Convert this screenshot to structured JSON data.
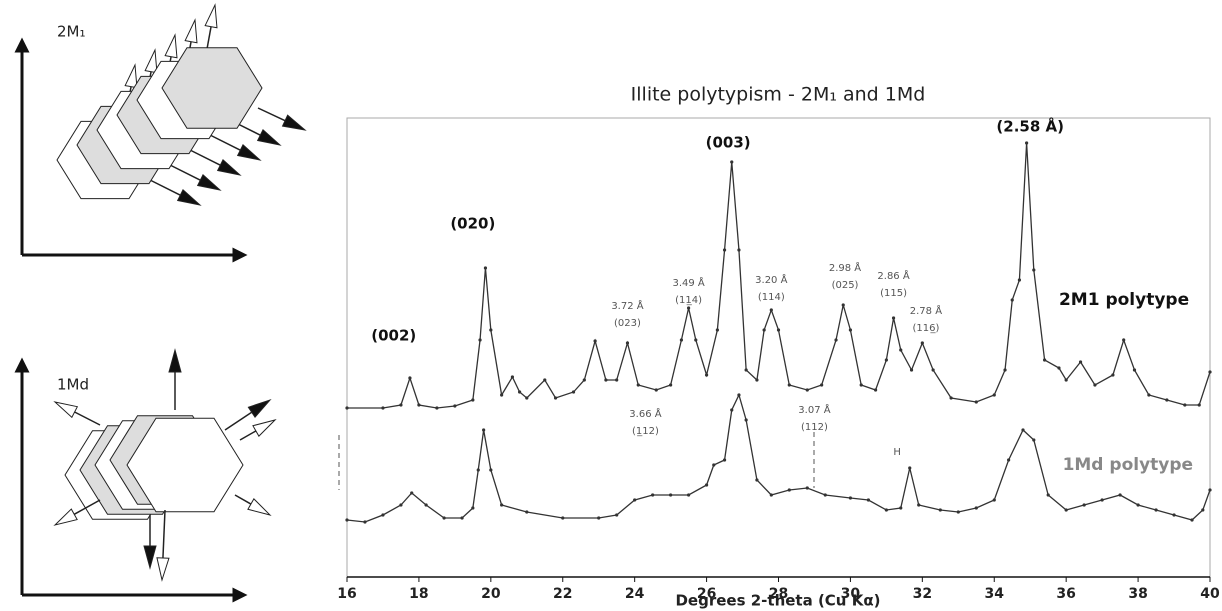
{
  "diagrams": {
    "labels": [
      "2M₁",
      "1Md"
    ]
  },
  "chart_data": {
    "type": "line",
    "title": "Illite polytypism - 2M₁ and 1Md",
    "x_label": "Degrees 2-theta (Cu Kα)",
    "xlim": [
      16,
      40
    ],
    "xticks": [
      16,
      18,
      20,
      22,
      24,
      26,
      28,
      30,
      32,
      34,
      36,
      38,
      40
    ],
    "ylim": [
      0,
      459
    ],
    "series": [
      {
        "name": "2M1 polytype",
        "color": "#333333",
        "label_color": "#111111",
        "label_at": [
          35.8,
          277
        ],
        "x": [
          16,
          17,
          17.5,
          17.75,
          18,
          18.5,
          19,
          19.5,
          19.7,
          19.85,
          20,
          20.3,
          20.6,
          20.8,
          21,
          21.5,
          21.8,
          22.3,
          22.6,
          22.9,
          23.2,
          23.5,
          23.8,
          24.1,
          24.6,
          25,
          25.3,
          25.5,
          25.7,
          26,
          26.3,
          26.5,
          26.7,
          26.9,
          27.1,
          27.4,
          27.6,
          27.8,
          28,
          28.3,
          28.8,
          29.2,
          29.6,
          29.8,
          30,
          30.3,
          30.7,
          31,
          31.2,
          31.4,
          31.7,
          32,
          32.3,
          32.8,
          33.5,
          34,
          34.3,
          34.5,
          34.7,
          34.9,
          35.1,
          35.4,
          35.8,
          36,
          36.4,
          36.8,
          37.3,
          37.6,
          37.9,
          38.3,
          38.8,
          39.3,
          39.7,
          40
        ],
        "values": [
          169,
          169,
          172,
          199,
          172,
          169,
          171,
          177,
          237,
          309,
          247,
          182,
          200,
          185,
          179,
          197,
          179,
          185,
          197,
          236,
          197,
          197,
          234,
          192,
          187,
          192,
          237,
          269,
          237,
          202,
          247,
          327,
          415,
          327,
          207,
          197,
          247,
          267,
          247,
          192,
          187,
          192,
          237,
          272,
          247,
          192,
          187,
          217,
          259,
          227,
          207,
          234,
          207,
          179,
          175,
          182,
          207,
          277,
          297,
          434,
          307,
          217,
          209,
          197,
          215,
          192,
          202,
          237,
          207,
          182,
          177,
          172,
          172,
          205
        ]
      },
      {
        "name": "1Md polytype",
        "color": "#333333",
        "label_color": "#888888",
        "label_at": [
          35.9,
          112
        ],
        "x": [
          16,
          16.5,
          17,
          17.5,
          17.8,
          18.2,
          18.7,
          19.2,
          19.5,
          19.65,
          19.8,
          20,
          20.3,
          21,
          22,
          23,
          23.5,
          24,
          24.5,
          25,
          25.5,
          26,
          26.2,
          26.5,
          26.7,
          26.9,
          27.1,
          27.4,
          27.8,
          28.3,
          28.8,
          29.3,
          30,
          30.5,
          31,
          31.4,
          31.65,
          31.9,
          32.5,
          33,
          33.5,
          34,
          34.4,
          34.8,
          35.1,
          35.5,
          36,
          36.5,
          37,
          37.5,
          38,
          38.5,
          39,
          39.5,
          39.8,
          40
        ],
        "values": [
          57,
          55,
          62,
          72,
          84,
          72,
          59,
          59,
          69,
          107,
          147,
          107,
          72,
          65,
          59,
          59,
          62,
          77,
          82,
          82,
          82,
          92,
          112,
          117,
          167,
          182,
          157,
          97,
          82,
          87,
          89,
          82,
          79,
          77,
          67,
          69,
          109,
          72,
          67,
          65,
          69,
          77,
          117,
          147,
          137,
          82,
          67,
          72,
          77,
          82,
          72,
          67,
          62,
          57,
          67,
          87
        ]
      }
    ],
    "annotations": [
      {
        "lines": [
          "(002)"
        ],
        "x": 17.3,
        "y": 241,
        "bold": true
      },
      {
        "lines": [
          "(020)"
        ],
        "x": 19.5,
        "y": 353,
        "bold": true
      },
      {
        "lines": [
          "(003)"
        ],
        "x": 26.6,
        "y": 434,
        "bold": true
      },
      {
        "lines": [
          "(2.58 Å)"
        ],
        "x": 35.0,
        "y": 450,
        "bold": true
      },
      {
        "lines": [
          "3.72 Å",
          "(023)"
        ],
        "x": 23.8,
        "y": 271,
        "bold": false
      },
      {
        "lines": [
          "3.49 Å",
          "(11̲4)"
        ],
        "x": 25.5,
        "y": 294,
        "bold": false
      },
      {
        "lines": [
          "3.20 Å",
          "(114)"
        ],
        "x": 27.8,
        "y": 297,
        "bold": false
      },
      {
        "lines": [
          "2.98 Å",
          "(025)"
        ],
        "x": 29.85,
        "y": 309,
        "bold": false
      },
      {
        "lines": [
          "2.86 Å",
          "(115)"
        ],
        "x": 31.2,
        "y": 301,
        "bold": false
      },
      {
        "lines": [
          "2.78 Å",
          "(116̲)"
        ],
        "x": 32.1,
        "y": 266,
        "bold": false
      },
      {
        "lines": [
          "3.66 Å",
          "(1̲12)"
        ],
        "x": 24.3,
        "y": 163,
        "bold": false
      },
      {
        "lines": [
          "3.07 Å",
          "(112)"
        ],
        "x": 29.0,
        "y": 167,
        "bold": false
      },
      {
        "lines": [
          "H"
        ],
        "x": 31.3,
        "y": 125,
        "bold": false
      }
    ]
  }
}
